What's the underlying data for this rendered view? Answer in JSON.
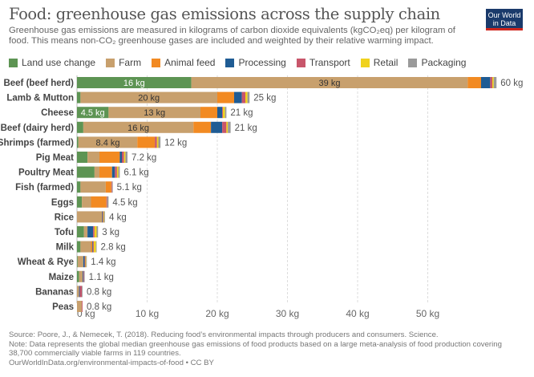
{
  "header": {
    "title": "Food: greenhouse gas emissions across the supply chain",
    "subtitle": "Greenhouse gas emissions are measured in kilograms of carbon dioxide equivalents (kgCO₂eq) per kilogram of food. This means non-CO₂ greenhouse gases are included and weighted by their relative warming impact.",
    "logo_line1": "Our World",
    "logo_line2": "in Data"
  },
  "chart_data": {
    "type": "bar",
    "orientation": "horizontal",
    "stacked": true,
    "title": "Food: greenhouse gas emissions across the supply chain",
    "xlabel": "",
    "ylabel": "",
    "unit": "kg",
    "xlim": [
      0,
      60
    ],
    "x_ticks": [
      0,
      10,
      20,
      30,
      40,
      50
    ],
    "x_tick_labels": [
      "0 kg",
      "10 kg",
      "20 kg",
      "30 kg",
      "40 kg",
      "50 kg"
    ],
    "grid": true,
    "legend_position": "top-left",
    "categories": [
      "Beef (beef herd)",
      "Lamb & Mutton",
      "Cheese",
      "Beef (dairy herd)",
      "Shrimps (farmed)",
      "Pig Meat",
      "Poultry Meat",
      "Fish (farmed)",
      "Eggs",
      "Rice",
      "Tofu",
      "Milk",
      "Wheat & Rye",
      "Maize",
      "Bananas",
      "Peas"
    ],
    "totals": [
      "60 kg",
      "25 kg",
      "21 kg",
      "21 kg",
      "12 kg",
      "7.2 kg",
      "6.1 kg",
      "5.1 kg",
      "4.5 kg",
      "4 kg",
      "3 kg",
      "2.8 kg",
      "1.4 kg",
      "1.1 kg",
      "0.8 kg",
      "0.8 kg"
    ],
    "series": [
      {
        "name": "Land use change",
        "color": "#5d9453",
        "values": [
          16.3,
          0.5,
          4.5,
          0.9,
          0.2,
          1.5,
          2.5,
          0.5,
          0.7,
          0.0,
          1.0,
          0.5,
          0.1,
          0.3,
          0.0,
          0.0
        ],
        "labels": [
          "16 kg",
          "",
          "4.5 kg",
          "",
          "",
          "",
          "",
          "",
          "",
          "",
          "",
          "",
          "",
          "",
          "",
          ""
        ]
      },
      {
        "name": "Farm",
        "color": "#c8a06d",
        "values": [
          39.4,
          19.5,
          13.1,
          15.7,
          8.4,
          1.7,
          0.7,
          3.6,
          1.3,
          3.6,
          0.5,
          1.5,
          0.8,
          0.5,
          0.3,
          0.7
        ],
        "labels": [
          "39 kg",
          "20 kg",
          "13 kg",
          "16 kg",
          "8.4 kg",
          "",
          "",
          "",
          "",
          "",
          "",
          "",
          "",
          "",
          "",
          ""
        ]
      },
      {
        "name": "Animal feed",
        "color": "#f28a22",
        "values": [
          1.9,
          2.4,
          2.4,
          2.5,
          2.5,
          2.9,
          1.8,
          0.8,
          2.2,
          0.0,
          0.0,
          0.2,
          0.0,
          0.0,
          0.0,
          0.0
        ]
      },
      {
        "name": "Processing",
        "color": "#1f5c94",
        "values": [
          1.3,
          1.1,
          0.7,
          1.6,
          0.0,
          0.3,
          0.4,
          0.0,
          0.0,
          0.1,
          0.8,
          0.1,
          0.2,
          0.1,
          0.1,
          0.0
        ]
      },
      {
        "name": "Transport",
        "color": "#c8566b",
        "values": [
          0.3,
          0.5,
          0.1,
          0.6,
          0.3,
          0.3,
          0.3,
          0.1,
          0.1,
          0.1,
          0.2,
          0.1,
          0.1,
          0.1,
          0.3,
          0.1
        ]
      },
      {
        "name": "Retail",
        "color": "#f0d21d",
        "values": [
          0.2,
          0.3,
          0.3,
          0.2,
          0.2,
          0.2,
          0.2,
          0.0,
          0.0,
          0.1,
          0.3,
          0.3,
          0.1,
          0.0,
          0.0,
          0.0
        ]
      },
      {
        "name": "Packaging",
        "color": "#9a9a9a",
        "values": [
          0.4,
          0.3,
          0.2,
          0.4,
          0.3,
          0.3,
          0.2,
          0.1,
          0.2,
          0.1,
          0.2,
          0.1,
          0.1,
          0.1,
          0.1,
          0.0
        ]
      }
    ]
  },
  "footer": {
    "source": "Source: Poore, J., & Nemecek, T. (2018). Reducing food’s environmental impacts through producers and consumers. Science.",
    "note": "Note: Data represents the global median greenhouse gas emissions of food products based on a large meta-analysis of food production covering 38,700 commercially viable farms in 119 countries.",
    "link": "OurWorldInData.org/environmental-impacts-of-food • CC BY"
  }
}
